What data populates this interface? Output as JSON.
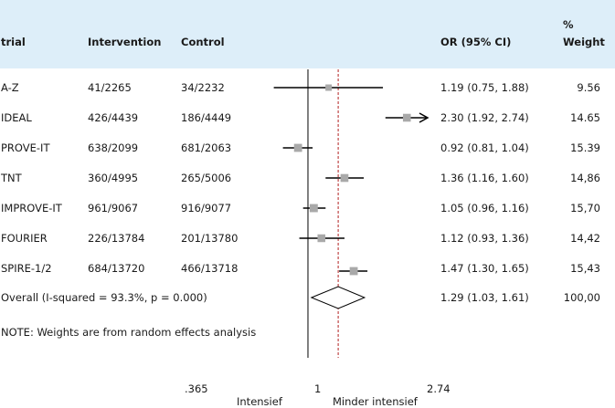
{
  "header": {
    "trial": "trial",
    "intervention": "Intervention",
    "control": "Control",
    "or_ci": "OR (95% CI)",
    "weight_pct": "%",
    "weight": "Weight"
  },
  "rows": [
    {
      "trial": "A-Z",
      "intervention": "41/2265",
      "control": "34/2232",
      "or_text": "1.19 (0.75, 1.88)",
      "weight": "9.56"
    },
    {
      "trial": "IDEAL",
      "intervention": "426/4439",
      "control": "186/4449",
      "or_text": "2.30 (1.92, 2.74)",
      "weight": "14.65"
    },
    {
      "trial": "PROVE-IT",
      "intervention": "638/2099",
      "control": "681/2063",
      "or_text": "0.92 (0.81, 1.04)",
      "weight": "15.39"
    },
    {
      "trial": "TNT",
      "intervention": "360/4995",
      "control": "265/5006",
      "or_text": "1.36 (1.16, 1.60)",
      "weight": "14,86"
    },
    {
      "trial": "IMPROVE-IT",
      "intervention": "961/9067",
      "control": "916/9077",
      "or_text": "1.05 (0.96, 1.16)",
      "weight": "15,70"
    },
    {
      "trial": "FOURIER",
      "intervention": "226/13784",
      "control": "201/13780",
      "or_text": "1.12 (0.93, 1.36)",
      "weight": "14,42"
    },
    {
      "trial": "SPIRE-1/2",
      "intervention": "684/13720",
      "control": "466/13718",
      "or_text": "1.47 (1.30, 1.65)",
      "weight": "15,43"
    }
  ],
  "overall": {
    "label": "Overall (I-squared = 93.3%, p = 0.000)",
    "or_text": "1.29 (1.03, 1.61)",
    "weight": "100,00"
  },
  "note": "NOTE: Weights are from random effects analysis",
  "axis": {
    "ticks": [
      ".365",
      "1",
      "2.74"
    ],
    "left_label": "Intensief",
    "right_label": "Minder intensief"
  },
  "colors": {
    "header_bg": "#ddeef9",
    "marker": "#a9a9a9",
    "ci_line": "#000000",
    "reference_line": "#000000",
    "overall_line": "#b22222"
  },
  "chart_data": {
    "type": "forest",
    "scale": "log",
    "xlim": [
      0.365,
      2.74
    ],
    "ticks": [
      0.365,
      1,
      2.74
    ],
    "reference": 1,
    "overall_reference": 1.29,
    "studies": [
      {
        "name": "A-Z",
        "or": 1.19,
        "lo": 0.75,
        "hi": 1.88,
        "weight": 9.56
      },
      {
        "name": "IDEAL",
        "or": 2.3,
        "lo": 1.92,
        "hi": 2.74,
        "weight": 14.65,
        "arrow": true
      },
      {
        "name": "PROVE-IT",
        "or": 0.92,
        "lo": 0.81,
        "hi": 1.04,
        "weight": 15.39
      },
      {
        "name": "TNT",
        "or": 1.36,
        "lo": 1.16,
        "hi": 1.6,
        "weight": 14.86
      },
      {
        "name": "IMPROVE-IT",
        "or": 1.05,
        "lo": 0.96,
        "hi": 1.16,
        "weight": 15.7
      },
      {
        "name": "FOURIER",
        "or": 1.12,
        "lo": 0.93,
        "hi": 1.36,
        "weight": 14.42
      },
      {
        "name": "SPIRE-1/2",
        "or": 1.47,
        "lo": 1.3,
        "hi": 1.65,
        "weight": 15.43
      }
    ],
    "overall": {
      "or": 1.29,
      "lo": 1.03,
      "hi": 1.61,
      "weight": 100.0
    }
  }
}
